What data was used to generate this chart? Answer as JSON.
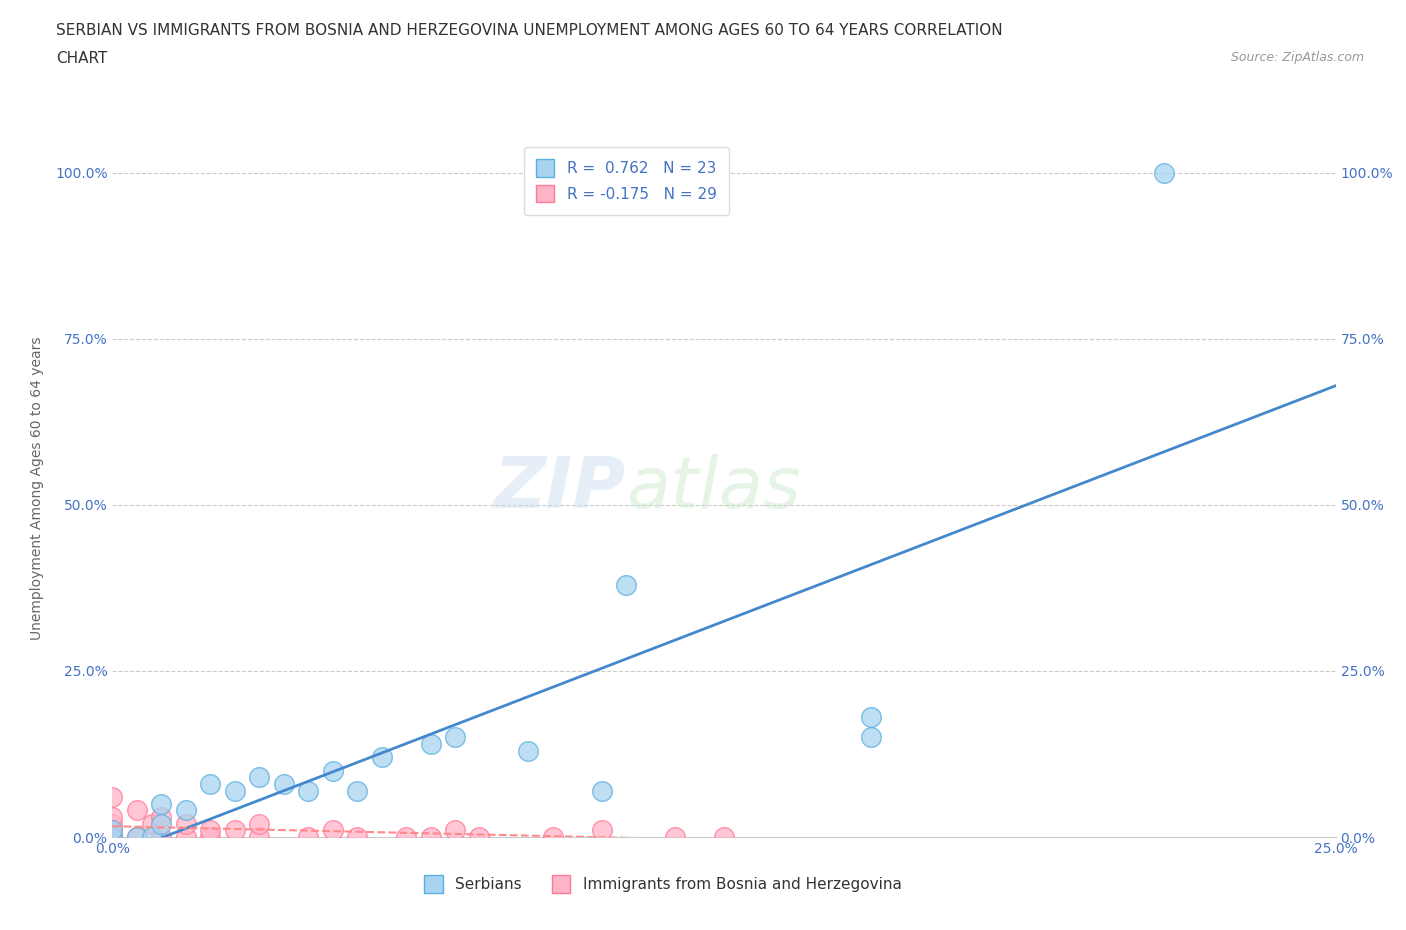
{
  "title_line1": "SERBIAN VS IMMIGRANTS FROM BOSNIA AND HERZEGOVINA UNEMPLOYMENT AMONG AGES 60 TO 64 YEARS CORRELATION",
  "title_line2": "CHART",
  "source": "Source: ZipAtlas.com",
  "ylabel": "Unemployment Among Ages 60 to 64 years",
  "xlim": [
    0.0,
    0.25
  ],
  "ylim": [
    0.0,
    1.05
  ],
  "xtick_vals": [
    0.0,
    0.05,
    0.1,
    0.15,
    0.2,
    0.25
  ],
  "xtick_labels": [
    "0.0%",
    "",
    "",
    "",
    "",
    "25.0%"
  ],
  "ytick_vals": [
    0.0,
    0.25,
    0.5,
    0.75,
    1.0
  ],
  "ytick_labels": [
    "0.0%",
    "25.0%",
    "50.0%",
    "75.0%",
    "100.0%"
  ],
  "grid_color": "#cccccc",
  "background_color": "#ffffff",
  "serbian_color": "#a8d4f0",
  "serbian_edge_color": "#5aaee0",
  "bosnian_color": "#ffb3c6",
  "bosnian_edge_color": "#ff7799",
  "serbian_trend_color": "#4488cc",
  "bosnian_trend_color": "#ff8888",
  "serbian_R": 0.762,
  "serbian_N": 23,
  "bosnian_R": -0.175,
  "bosnian_N": 29,
  "serbian_scatter_x": [
    0.0,
    0.0,
    0.005,
    0.008,
    0.01,
    0.01,
    0.015,
    0.02,
    0.025,
    0.03,
    0.035,
    0.04,
    0.045,
    0.05,
    0.055,
    0.065,
    0.07,
    0.085,
    0.1,
    0.105,
    0.155,
    0.155,
    0.215
  ],
  "serbian_scatter_y": [
    0.0,
    0.01,
    0.0,
    0.0,
    0.02,
    0.05,
    0.04,
    0.08,
    0.07,
    0.09,
    0.08,
    0.07,
    0.1,
    0.07,
    0.12,
    0.14,
    0.15,
    0.13,
    0.07,
    0.38,
    0.15,
    0.18,
    1.0
  ],
  "bosnian_scatter_x": [
    0.0,
    0.0,
    0.0,
    0.0,
    0.0,
    0.0,
    0.005,
    0.005,
    0.008,
    0.01,
    0.01,
    0.015,
    0.015,
    0.02,
    0.02,
    0.025,
    0.03,
    0.03,
    0.04,
    0.045,
    0.05,
    0.06,
    0.065,
    0.07,
    0.075,
    0.09,
    0.1,
    0.115,
    0.125
  ],
  "bosnian_scatter_y": [
    0.0,
    0.0,
    0.01,
    0.02,
    0.03,
    0.06,
    0.0,
    0.04,
    0.02,
    0.0,
    0.03,
    0.0,
    0.02,
    0.0,
    0.01,
    0.01,
    0.0,
    0.02,
    0.0,
    0.01,
    0.0,
    0.0,
    0.0,
    0.01,
    0.0,
    0.0,
    0.01,
    0.0,
    0.0
  ],
  "legend_label_serbian": "Serbians",
  "legend_label_bosnian": "Immigrants from Bosnia and Herzegovina",
  "title_fontsize": 11,
  "axis_label_fontsize": 10,
  "tick_fontsize": 10,
  "legend_fontsize": 11,
  "source_fontsize": 9
}
